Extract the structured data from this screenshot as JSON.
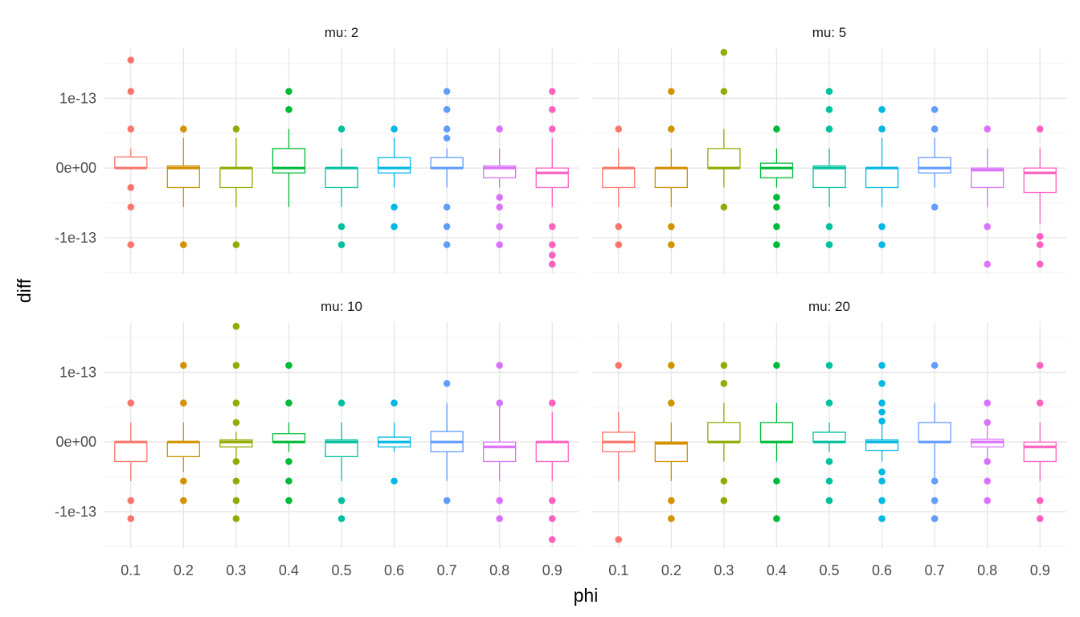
{
  "chart_data": {
    "type": "boxplot",
    "xlabel": "phi",
    "ylabel": "diff",
    "categories": [
      "0.1",
      "0.2",
      "0.3",
      "0.4",
      "0.5",
      "0.6",
      "0.7",
      "0.8",
      "0.9"
    ],
    "y_ticks": [
      {
        "value": -1e-13,
        "label": "-1e-13"
      },
      {
        "value": 0,
        "label": "0e+00"
      },
      {
        "value": 1e-13,
        "label": "1e-13"
      }
    ],
    "y_range": [
      -1.52e-13,
      1.72e-13
    ],
    "grid": true,
    "legend": "none",
    "colors": [
      "#F8766D",
      "#D39200",
      "#93AA00",
      "#00BA38",
      "#00C19F",
      "#00B9E3",
      "#619CFF",
      "#DB72FB",
      "#FF61C3"
    ],
    "panels": [
      {
        "strip": "mu: 2",
        "boxes": [
          {
            "q1": 0,
            "median": 0,
            "q3": 1.6e-14,
            "wlo": -2e-15,
            "whi": 2.8e-14,
            "out": [
              1.55e-13,
              1.1e-13,
              5.6e-14,
              -2.8e-14,
              -5.6e-14,
              -1.1e-13
            ]
          },
          {
            "q1": -2.8e-14,
            "median": 0,
            "q3": 3e-15,
            "wlo": -5.6e-14,
            "whi": 4.3e-14,
            "out": [
              5.6e-14,
              -1.1e-13
            ]
          },
          {
            "q1": -2.8e-14,
            "median": 0,
            "q3": 0,
            "wlo": -5.6e-14,
            "whi": 4.3e-14,
            "out": [
              5.6e-14,
              -1.1e-13
            ]
          },
          {
            "q1": -7e-15,
            "median": 0,
            "q3": 2.8e-14,
            "wlo": -5.6e-14,
            "whi": 5.6e-14,
            "out": [
              1.1e-13,
              8.4e-14
            ]
          },
          {
            "q1": -2.8e-14,
            "median": 0,
            "q3": 0,
            "wlo": -5.6e-14,
            "whi": 2.8e-14,
            "out": [
              5.6e-14,
              -8.4e-14,
              -1.1e-13
            ]
          },
          {
            "q1": -7e-15,
            "median": 0,
            "q3": 1.5e-14,
            "wlo": -2.8e-14,
            "whi": 4.3e-14,
            "out": [
              5.6e-14,
              -5.6e-14,
              -8.4e-14
            ]
          },
          {
            "q1": 0,
            "median": 0,
            "q3": 1.5e-14,
            "wlo": -2.8e-14,
            "whi": 2.8e-14,
            "out": [
              1.1e-13,
              8.4e-14,
              5.6e-14,
              4.3e-14,
              -5.6e-14,
              -8.4e-14,
              -1.1e-13
            ]
          },
          {
            "q1": -1.4e-14,
            "median": 0,
            "q3": 3e-15,
            "wlo": -2.8e-14,
            "whi": 2.8e-14,
            "out": [
              5.6e-14,
              -4.2e-14,
              -5.6e-14,
              -8.4e-14,
              -1.1e-13
            ]
          },
          {
            "q1": -2.8e-14,
            "median": -7e-15,
            "q3": 0,
            "wlo": -5.6e-14,
            "whi": 4.3e-14,
            "out": [
              1.1e-13,
              8.4e-14,
              5.6e-14,
              -8.4e-14,
              -1.1e-13,
              -1.25e-13,
              -1.38e-13
            ]
          }
        ]
      },
      {
        "strip": "mu: 5",
        "boxes": [
          {
            "q1": -2.8e-14,
            "median": 0,
            "q3": 0,
            "wlo": -5.6e-14,
            "whi": 2.8e-14,
            "out": [
              5.6e-14,
              -8.4e-14,
              -1.1e-13
            ]
          },
          {
            "q1": -2.8e-14,
            "median": 0,
            "q3": 0,
            "wlo": -5.6e-14,
            "whi": 2.8e-14,
            "out": [
              1.1e-13,
              5.6e-14,
              -8.4e-14,
              -1.1e-13
            ]
          },
          {
            "q1": 0,
            "median": 0,
            "q3": 2.8e-14,
            "wlo": -2.8e-14,
            "whi": 5.6e-14,
            "out": [
              1.66e-13,
              1.1e-13,
              -5.6e-14
            ]
          },
          {
            "q1": -1.4e-14,
            "median": 0,
            "q3": 7e-15,
            "wlo": -2.8e-14,
            "whi": 2.8e-14,
            "out": [
              5.6e-14,
              -4.2e-14,
              -5.6e-14,
              -8.4e-14,
              -1.1e-13
            ]
          },
          {
            "q1": -2.8e-14,
            "median": 0,
            "q3": 3e-15,
            "wlo": -5.6e-14,
            "whi": 2.8e-14,
            "out": [
              1.1e-13,
              8.4e-14,
              5.6e-14,
              -8.4e-14,
              -1.1e-13
            ]
          },
          {
            "q1": -2.8e-14,
            "median": 0,
            "q3": 0,
            "wlo": -5.6e-14,
            "whi": 4.3e-14,
            "out": [
              8.4e-14,
              5.6e-14,
              -8.4e-14,
              -1.1e-13
            ]
          },
          {
            "q1": -7e-15,
            "median": 0,
            "q3": 1.5e-14,
            "wlo": -2.8e-14,
            "whi": 4.3e-14,
            "out": [
              8.4e-14,
              5.6e-14,
              -5.6e-14
            ]
          },
          {
            "q1": -2.8e-14,
            "median": -3e-15,
            "q3": 0,
            "wlo": -5.6e-14,
            "whi": 2.8e-14,
            "out": [
              5.6e-14,
              -8.4e-14,
              -1.38e-13
            ]
          },
          {
            "q1": -3.5e-14,
            "median": -7e-15,
            "q3": 0,
            "wlo": -8e-14,
            "whi": 2.8e-14,
            "out": [
              5.6e-14,
              -9.8e-14,
              -1.1e-13,
              -1.38e-13
            ]
          }
        ]
      },
      {
        "strip": "mu: 10",
        "boxes": [
          {
            "q1": -2.8e-14,
            "median": 0,
            "q3": 0,
            "wlo": -5.6e-14,
            "whi": 2.8e-14,
            "out": [
              5.6e-14,
              -8.4e-14,
              -1.1e-13
            ]
          },
          {
            "q1": -2.1e-14,
            "median": 0,
            "q3": 0,
            "wlo": -4.3e-14,
            "whi": 2.8e-14,
            "out": [
              1.1e-13,
              5.6e-14,
              -5.6e-14,
              -8.4e-14
            ]
          },
          {
            "q1": -7e-15,
            "median": 0,
            "q3": 3e-15,
            "wlo": -2.8e-14,
            "whi": 1.4e-14,
            "out": [
              1.66e-13,
              1.1e-13,
              5.6e-14,
              2.8e-14,
              -2.8e-14,
              -5.6e-14,
              -8.4e-14,
              -1.1e-13
            ]
          },
          {
            "q1": 0,
            "median": 0,
            "q3": 1.2e-14,
            "wlo": -1.4e-14,
            "whi": 2.8e-14,
            "out": [
              1.1e-13,
              5.6e-14,
              -2.8e-14,
              -5.6e-14,
              -8.4e-14
            ]
          },
          {
            "q1": -2.1e-14,
            "median": 0,
            "q3": 3e-15,
            "wlo": -5.6e-14,
            "whi": 2.8e-14,
            "out": [
              5.6e-14,
              -8.4e-14,
              -1.1e-13
            ]
          },
          {
            "q1": -7e-15,
            "median": 0,
            "q3": 7e-15,
            "wlo": -1.4e-14,
            "whi": 2.8e-14,
            "out": [
              5.6e-14,
              -5.6e-14
            ]
          },
          {
            "q1": -1.4e-14,
            "median": 0,
            "q3": 1.5e-14,
            "wlo": -5.6e-14,
            "whi": 5.6e-14,
            "out": [
              8.4e-14,
              -8.4e-14
            ]
          },
          {
            "q1": -2.8e-14,
            "median": -7e-15,
            "q3": 0,
            "wlo": -5.6e-14,
            "whi": 5.6e-14,
            "out": [
              1.1e-13,
              5.6e-14,
              -8.4e-14,
              -1.1e-13
            ]
          },
          {
            "q1": -2.8e-14,
            "median": 0,
            "q3": 0,
            "wlo": -5.6e-14,
            "whi": 4.3e-14,
            "out": [
              5.6e-14,
              -8.4e-14,
              -1.1e-13,
              -1.4e-13
            ]
          }
        ]
      },
      {
        "strip": "mu: 20",
        "boxes": [
          {
            "q1": -1.4e-14,
            "median": 0,
            "q3": 1.4e-14,
            "wlo": -5.6e-14,
            "whi": 4.3e-14,
            "out": [
              1.1e-13,
              -1.4e-13
            ]
          },
          {
            "q1": -2.8e-14,
            "median": -2e-15,
            "q3": 0,
            "wlo": -5.6e-14,
            "whi": 2.8e-14,
            "out": [
              1.1e-13,
              5.6e-14,
              -8.4e-14,
              -1.1e-13
            ]
          },
          {
            "q1": 0,
            "median": 0,
            "q3": 2.8e-14,
            "wlo": -2.8e-14,
            "whi": 5.6e-14,
            "out": [
              1.1e-13,
              8.4e-14,
              -5.6e-14,
              -8.4e-14
            ]
          },
          {
            "q1": 0,
            "median": 0,
            "q3": 2.8e-14,
            "wlo": -2.8e-14,
            "whi": 5.6e-14,
            "out": [
              1.1e-13,
              -5.6e-14,
              -1.1e-13
            ]
          },
          {
            "q1": 0,
            "median": 0,
            "q3": 1.4e-14,
            "wlo": -1.4e-14,
            "whi": 2.8e-14,
            "out": [
              1.1e-13,
              5.6e-14,
              -2.8e-14,
              -5.6e-14,
              -8.4e-14
            ]
          },
          {
            "q1": -1.2e-14,
            "median": 0,
            "q3": 3e-15,
            "wlo": -2.8e-14,
            "whi": 2.8e-14,
            "out": [
              1.1e-13,
              8.4e-14,
              5.6e-14,
              4.3e-14,
              3e-14,
              -4.3e-14,
              -5.6e-14,
              -8.4e-14,
              -1.1e-13
            ]
          },
          {
            "q1": 0,
            "median": 0,
            "q3": 2.8e-14,
            "wlo": -5.6e-14,
            "whi": 5.6e-14,
            "out": [
              1.1e-13,
              -5.6e-14,
              -8.4e-14,
              -1.1e-13
            ]
          },
          {
            "q1": -7e-15,
            "median": 0,
            "q3": 4e-15,
            "wlo": -2.8e-14,
            "whi": 2.8e-14,
            "out": [
              5.6e-14,
              2.8e-14,
              -2.8e-14,
              -5.6e-14,
              -8.4e-14
            ]
          },
          {
            "q1": -2.8e-14,
            "median": -7e-15,
            "q3": 0,
            "wlo": -5.6e-14,
            "whi": 2.8e-14,
            "out": [
              1.1e-13,
              5.6e-14,
              -8.4e-14,
              -1.1e-13
            ]
          }
        ]
      }
    ]
  }
}
